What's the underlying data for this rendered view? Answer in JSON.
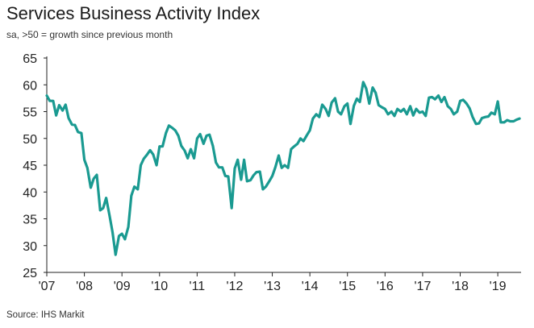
{
  "title": "Services Business Activity Index",
  "subtitle": "sa, >50 = growth since previous month",
  "source": "Source: IHS Markit",
  "chart_data": {
    "type": "line",
    "title": "Services Business Activity Index",
    "subtitle": "sa, >50 = growth since previous month",
    "xlabel": "",
    "ylabel": "",
    "ylim": [
      25,
      65
    ],
    "yticks": [
      "65",
      "60",
      "55",
      "50",
      "45",
      "40",
      "35",
      "30",
      "25"
    ],
    "xticks": [
      "'07",
      "'08",
      "'09",
      "'10",
      "'11",
      "'12",
      "'13",
      "'14",
      "'15",
      "'16",
      "'17",
      "'18",
      "'19"
    ],
    "xlim": [
      2007,
      2019.62
    ],
    "line_color": "#1a9a91",
    "grid": false,
    "legend": "none",
    "series": [
      {
        "x": [
          2007.0,
          2007.08,
          2007.17,
          2007.25,
          2007.33,
          2007.42,
          2007.5,
          2007.58,
          2007.67,
          2007.75,
          2007.83,
          2007.92,
          2008.0,
          2008.08,
          2008.17,
          2008.25,
          2008.33,
          2008.42,
          2008.5,
          2008.58,
          2008.67,
          2008.75,
          2008.83,
          2008.92,
          2009.0,
          2009.08,
          2009.17,
          2009.25,
          2009.33,
          2009.42,
          2009.5,
          2009.58,
          2009.67,
          2009.75,
          2009.83,
          2009.92,
          2010.0,
          2010.08,
          2010.17,
          2010.25,
          2010.33,
          2010.42,
          2010.5,
          2010.58,
          2010.67,
          2010.75,
          2010.83,
          2010.92,
          2011.0,
          2011.08,
          2011.17,
          2011.25,
          2011.33,
          2011.42,
          2011.5,
          2011.58,
          2011.67,
          2011.75,
          2011.83,
          2011.92,
          2012.0,
          2012.08,
          2012.17,
          2012.25,
          2012.33,
          2012.42,
          2012.5,
          2012.58,
          2012.67,
          2012.75,
          2012.83,
          2012.92,
          2013.0,
          2013.08,
          2013.17,
          2013.25,
          2013.33,
          2013.42,
          2013.5,
          2013.58,
          2013.67,
          2013.75,
          2013.83,
          2013.92,
          2014.0,
          2014.08,
          2014.17,
          2014.25,
          2014.33,
          2014.42,
          2014.5,
          2014.58,
          2014.67,
          2014.75,
          2014.83,
          2014.92,
          2015.0,
          2015.08,
          2015.17,
          2015.25,
          2015.33,
          2015.42,
          2015.5,
          2015.58,
          2015.67,
          2015.75,
          2015.83,
          2015.92,
          2016.0,
          2016.08,
          2016.17,
          2016.25,
          2016.33,
          2016.42,
          2016.5,
          2016.58,
          2016.67,
          2016.75,
          2016.83,
          2016.92,
          2017.0,
          2017.08,
          2017.17,
          2017.25,
          2017.33,
          2017.42,
          2017.5,
          2017.58,
          2017.67,
          2017.75,
          2017.83,
          2017.92,
          2018.0,
          2018.08,
          2018.17,
          2018.25,
          2018.33,
          2018.42,
          2018.5,
          2018.58,
          2018.67,
          2018.75,
          2018.83,
          2018.92,
          2019.0,
          2019.08,
          2019.17,
          2019.25,
          2019.33,
          2019.42,
          2019.5,
          2019.58
        ],
        "values": [
          58.0,
          57.0,
          57.0,
          54.3,
          56.2,
          55.2,
          56.3,
          53.8,
          52.6,
          52.5,
          51.2,
          51.0,
          46.0,
          44.5,
          40.8,
          42.5,
          43.2,
          36.6,
          37.0,
          38.9,
          35.6,
          32.5,
          28.3,
          31.8,
          32.2,
          31.2,
          33.5,
          39.3,
          41.0,
          40.5,
          45.0,
          46.2,
          47.0,
          47.8,
          47.0,
          45.0,
          48.5,
          48.5,
          51.0,
          52.4,
          52.0,
          51.5,
          50.5,
          48.6,
          47.7,
          46.3,
          48.0,
          46.3,
          50.0,
          50.8,
          49.0,
          50.5,
          50.7,
          48.6,
          45.5,
          44.6,
          44.6,
          43.0,
          42.9,
          37.0,
          44.4,
          46.0,
          42.3,
          46.0,
          42.0,
          42.2,
          43.1,
          43.7,
          43.8,
          40.5,
          41.0,
          42.0,
          43.0,
          44.6,
          46.8,
          44.5,
          45.0,
          44.5,
          48.0,
          48.5,
          49.0,
          50.0,
          49.5,
          50.6,
          51.5,
          53.7,
          54.5,
          54.0,
          56.3,
          55.5,
          54.2,
          56.7,
          57.5,
          55.0,
          54.5,
          56.0,
          56.5,
          52.7,
          56.1,
          57.4,
          56.8,
          60.5,
          59.3,
          56.5,
          59.5,
          58.5,
          56.2,
          55.8,
          55.5,
          54.5,
          55.0,
          54.2,
          55.5,
          55.0,
          55.5,
          54.5,
          56.0,
          54.3,
          55.5,
          54.8,
          55.0,
          54.2,
          57.6,
          57.7,
          57.3,
          58.0,
          56.8,
          57.7,
          56.0,
          55.5,
          54.5,
          55.0,
          57.0,
          57.2,
          56.5,
          55.6,
          54.0,
          52.7,
          52.8,
          53.8,
          54.0,
          54.1,
          54.8,
          54.5,
          56.9,
          53.0,
          53.0,
          53.4,
          53.2,
          53.2,
          53.5,
          53.7
        ]
      }
    ]
  }
}
